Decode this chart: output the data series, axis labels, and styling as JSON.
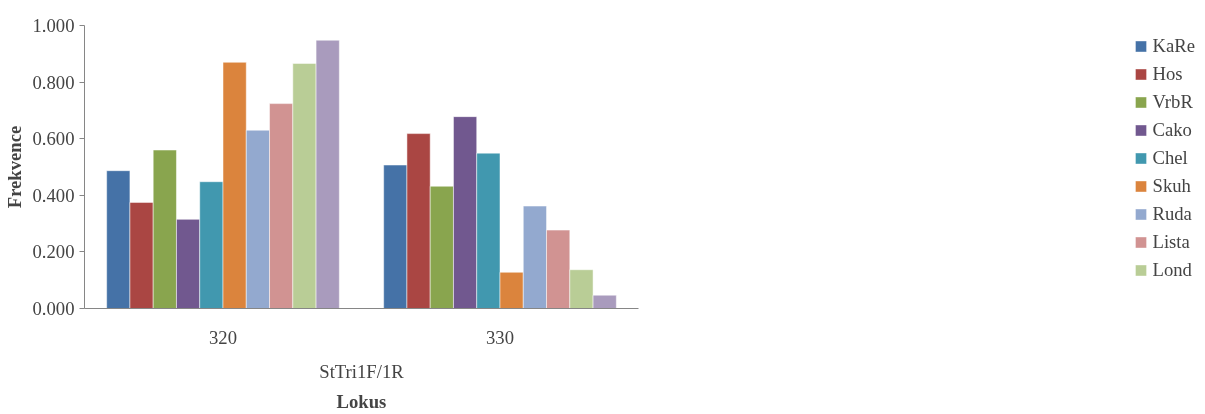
{
  "chart_data": {
    "type": "bar",
    "xlabel": "Lokus",
    "ylabel": "Frekvence",
    "categories": [
      "320",
      "330"
    ],
    "annotations": [
      "StTri1F/1R"
    ],
    "ylim": [
      0,
      1
    ],
    "yticks": [
      {
        "value": 0,
        "label": "0.000"
      },
      {
        "value": 0.2,
        "label": "0.200"
      },
      {
        "value": 0.4,
        "label": "0.400"
      },
      {
        "value": 0.6,
        "label": "0.600"
      },
      {
        "value": 0.8,
        "label": "0.800"
      },
      {
        "value": 1,
        "label": "1.000"
      }
    ],
    "grid": false,
    "legend": "right",
    "series": [
      {
        "name": "KaRe",
        "color": "#4572a7",
        "values": [
          0.487,
          0.507
        ]
      },
      {
        "name": "Hos",
        "color": "#aa4643",
        "values": [
          0.375,
          0.618
        ]
      },
      {
        "name": "VrbR",
        "color": "#89a54e",
        "values": [
          0.56,
          0.432
        ]
      },
      {
        "name": "Cako",
        "color": "#71588f",
        "values": [
          0.315,
          0.678
        ]
      },
      {
        "name": "Chel",
        "color": "#4198af",
        "values": [
          0.448,
          0.549
        ]
      },
      {
        "name": "Skuh",
        "color": "#db843d",
        "values": [
          0.87,
          0.128
        ]
      },
      {
        "name": "Ruda",
        "color": "#93a9cf",
        "values": [
          0.63,
          0.362
        ]
      },
      {
        "name": "Lista",
        "color": "#d19392",
        "values": [
          0.724,
          0.277
        ]
      },
      {
        "name": "Lond",
        "color": "#b9cd96",
        "values": [
          0.866,
          0.137
        ]
      },
      {
        "color": "#a99bbd",
        "values": [
          0.948,
          0.047
        ]
      }
    ]
  }
}
